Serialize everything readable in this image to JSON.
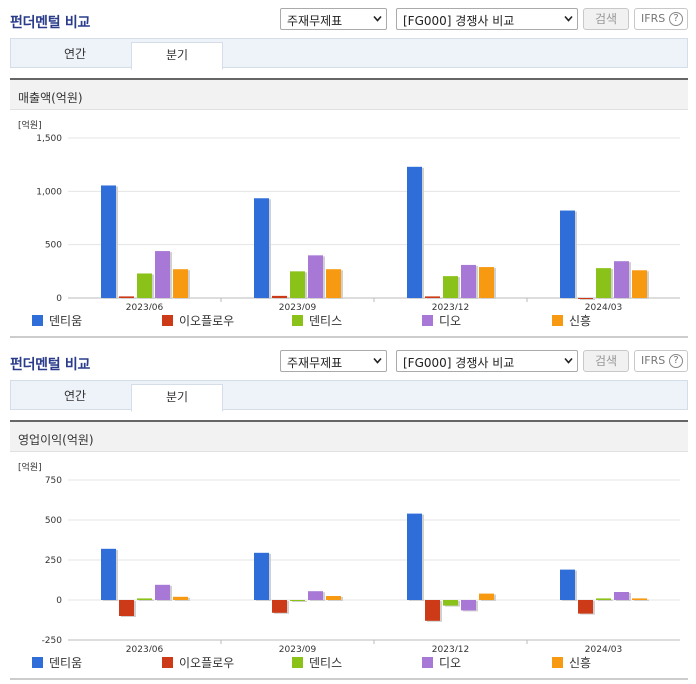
{
  "header": {
    "title": "펀더멘털 비교",
    "select_statement": "주재무제표",
    "select_compare": "[FG000] 경쟁사 비교",
    "search_label": "검색",
    "ifrs_label": "IFRS",
    "help_label": "?"
  },
  "tabs": [
    {
      "label": "연간"
    },
    {
      "label": "분기"
    }
  ],
  "colors": {
    "덴티움": "#2f6ed9",
    "이오플로우": "#cc3a17",
    "덴티스": "#8bc21a",
    "디오": "#a878d6",
    "신흥": "#f79a12"
  },
  "charts": [
    {
      "caption": "매출액(억원)",
      "chart_data": {
        "type": "bar",
        "unit_label": "[억원]",
        "categories": [
          "2023/06",
          "2023/09",
          "2023/12",
          "2024/03"
        ],
        "ylim": [
          0,
          1500
        ],
        "yticks": [
          0,
          500,
          1000,
          1500
        ],
        "ytick_labels": [
          "0",
          "500",
          "1,000",
          "1,500"
        ],
        "series": [
          {
            "name": "덴티움",
            "values": [
              1055,
              935,
              1230,
              820
            ]
          },
          {
            "name": "이오플로우",
            "values": [
              15,
              20,
              15,
              0
            ]
          },
          {
            "name": "덴티스",
            "values": [
              230,
              250,
              205,
              280
            ]
          },
          {
            "name": "디오",
            "values": [
              440,
              400,
              310,
              345
            ]
          },
          {
            "name": "신흥",
            "values": [
              270,
              270,
              290,
              260
            ]
          }
        ]
      }
    },
    {
      "caption": "영업이익(억원)",
      "chart_data": {
        "type": "bar",
        "unit_label": "[억원]",
        "categories": [
          "2023/06",
          "2023/09",
          "2023/12",
          "2024/03"
        ],
        "ylim": [
          -250,
          750
        ],
        "yticks": [
          -250,
          0,
          250,
          500,
          750
        ],
        "ytick_labels": [
          "-250",
          "0",
          "250",
          "500",
          "750"
        ],
        "series": [
          {
            "name": "덴티움",
            "values": [
              320,
              295,
              540,
              190
            ]
          },
          {
            "name": "이오플로우",
            "values": [
              -100,
              -80,
              -130,
              -85
            ]
          },
          {
            "name": "덴티스",
            "values": [
              10,
              0,
              -35,
              10
            ]
          },
          {
            "name": "디오",
            "values": [
              95,
              55,
              -65,
              50
            ]
          },
          {
            "name": "신흥",
            "values": [
              20,
              25,
              40,
              10
            ]
          }
        ]
      }
    }
  ]
}
